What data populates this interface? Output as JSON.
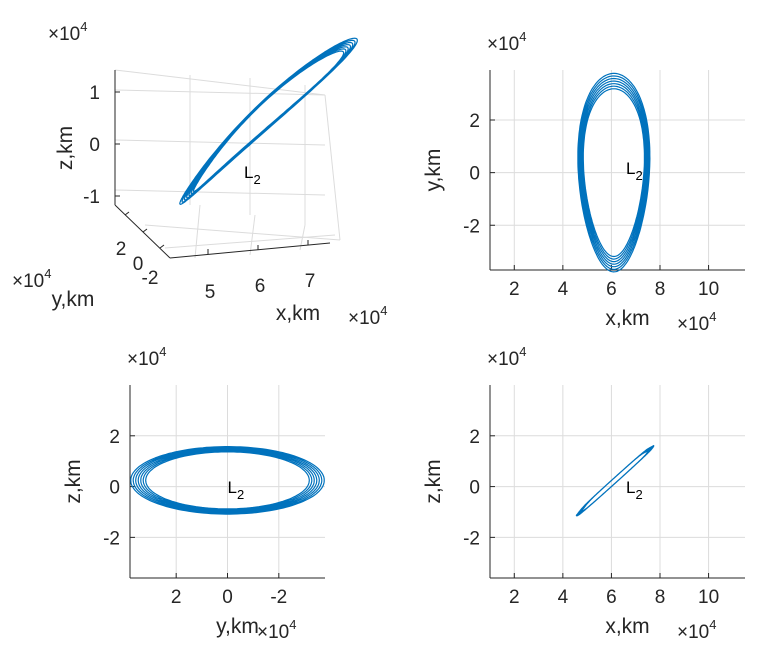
{
  "colors": {
    "orbit": "#0072BD",
    "axis": "#262626",
    "grid": "#dcdcdc"
  },
  "chart_data": [
    {
      "id": "3d",
      "type": "line",
      "view": "3d",
      "xlabel": "x,km",
      "ylabel": "y,km",
      "zlabel": "z,km",
      "x_ticks": [
        5,
        6,
        7
      ],
      "y_ticks": [
        2,
        0,
        -2
      ],
      "z_ticks": [
        1,
        0,
        -1
      ],
      "x_exp": "×10",
      "x_exp_power": "4",
      "y_exp": "×10",
      "y_exp_power": "4",
      "z_exp": "×10",
      "z_exp_power": "4",
      "annotation": "L",
      "annotation_sub": "2",
      "annotation_pos": [
        7.4,
        0,
        0
      ],
      "loops": 7,
      "orbit": {
        "x_range": [
          4.7,
          7.6
        ],
        "y_range": [
          -3.6,
          3.6
        ],
        "z_range": [
          -1.0,
          1.5
        ]
      },
      "grid": true
    },
    {
      "id": "xy",
      "type": "line",
      "xlabel": "x,km",
      "ylabel": "y,km",
      "xlim": [
        1,
        11.5
      ],
      "ylim": [
        -3.7,
        3.9
      ],
      "x_ticks": [
        2,
        4,
        6,
        8,
        10
      ],
      "y_ticks": [
        2,
        0,
        -2
      ],
      "x_exp": "×10",
      "x_exp_power": "4",
      "y_exp": "×10",
      "y_exp_power": "4",
      "annotation": "L",
      "annotation_sub": "2",
      "annotation_pos": [
        6.6,
        0.1
      ],
      "grid": true
    },
    {
      "id": "yz",
      "type": "line",
      "xlabel": "y,km",
      "ylabel": "z,km",
      "xlim": [
        3.8,
        -3.8
      ],
      "ylim": [
        -3.6,
        4
      ],
      "x_ticks": [
        2,
        0,
        -2
      ],
      "y_ticks": [
        2,
        0,
        -2
      ],
      "x_exp": "×10",
      "x_exp_power": "4",
      "y_exp": "×10",
      "y_exp_power": "4",
      "annotation": "L",
      "annotation_sub": "2",
      "annotation_pos": [
        0,
        -0.1
      ],
      "grid": true
    },
    {
      "id": "xz",
      "type": "line",
      "xlabel": "x,km",
      "ylabel": "z,km",
      "xlim": [
        1,
        11.5
      ],
      "ylim": [
        -3.6,
        4
      ],
      "x_ticks": [
        2,
        4,
        6,
        8,
        10
      ],
      "y_ticks": [
        2,
        0,
        -2
      ],
      "x_exp": "×10",
      "x_exp_power": "4",
      "y_exp": "×10",
      "y_exp_power": "4",
      "annotation": "L",
      "annotation_sub": "2",
      "annotation_pos": [
        6.6,
        -0.1
      ],
      "grid": true
    }
  ]
}
